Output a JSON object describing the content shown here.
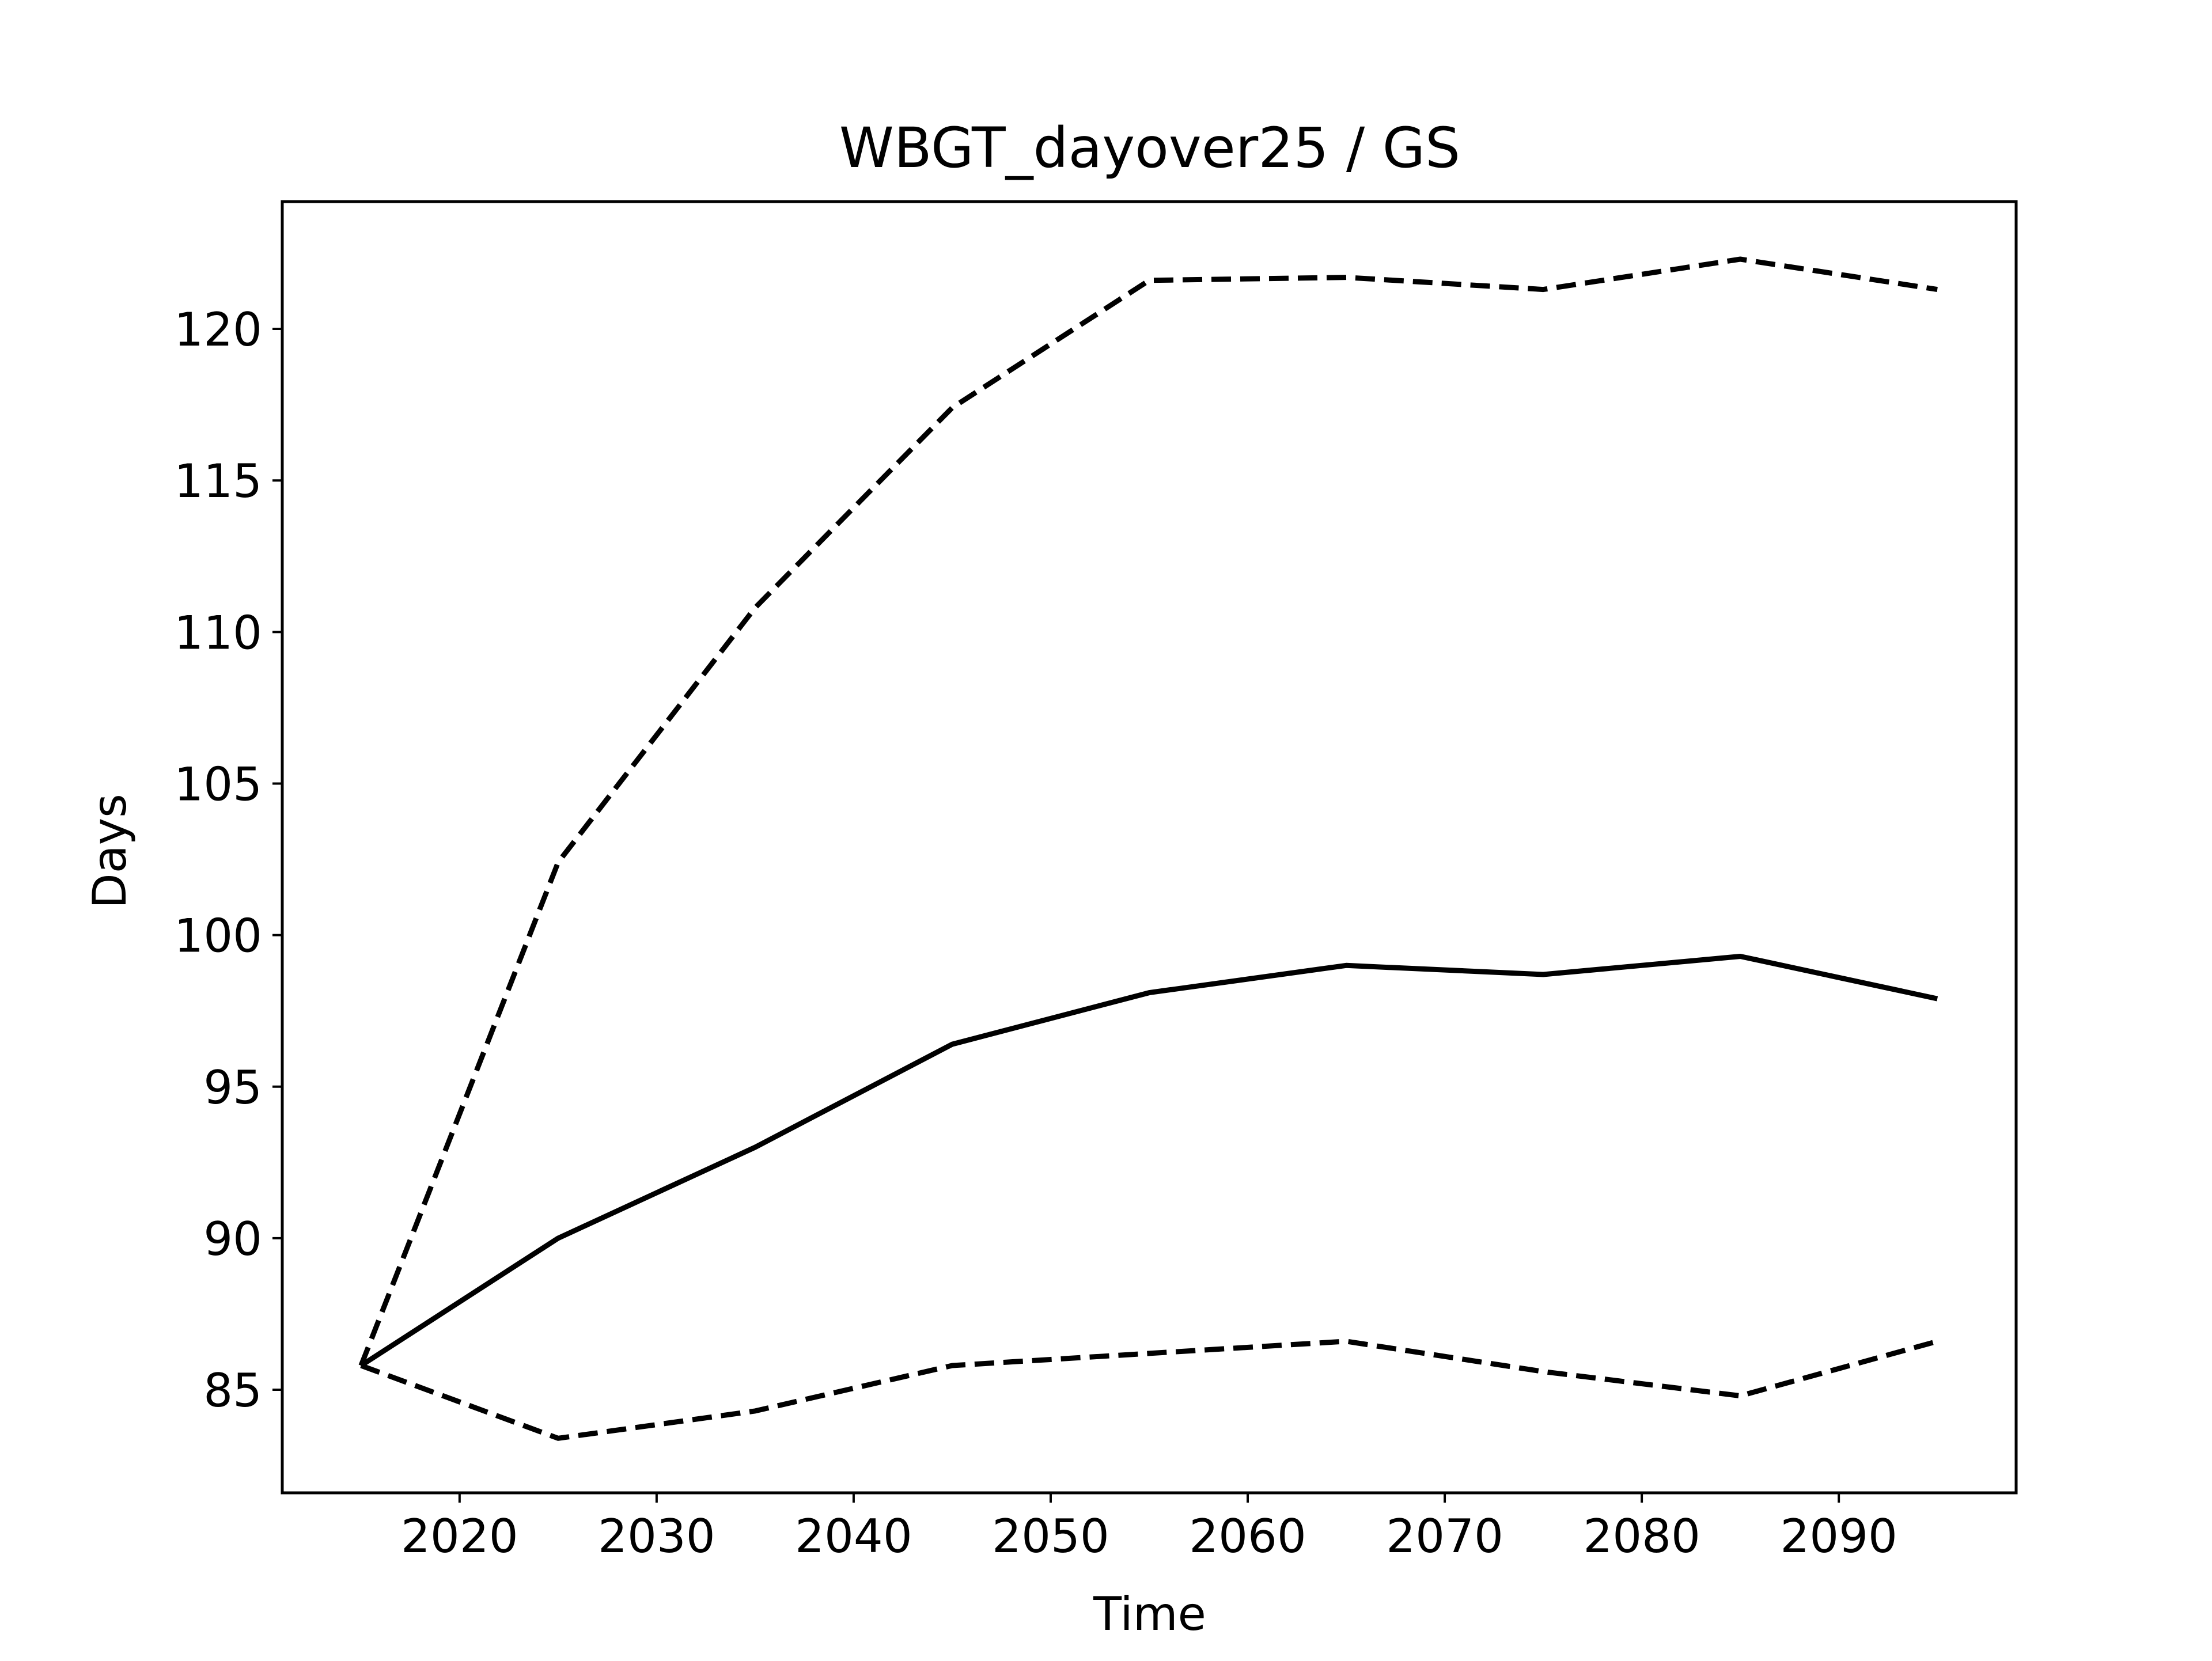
{
  "chart_data": {
    "type": "line",
    "title": "WBGT_dayover25 / GS",
    "xlabel": "Time",
    "ylabel": "Days",
    "xlim": [
      2011,
      2099
    ],
    "ylim": [
      81.6,
      124.2
    ],
    "xticks": [
      2020,
      2030,
      2040,
      2050,
      2060,
      2070,
      2080,
      2090
    ],
    "yticks": [
      85,
      90,
      95,
      100,
      105,
      110,
      115,
      120
    ],
    "grid": false,
    "legend": "none",
    "x": [
      2015,
      2025,
      2035,
      2045,
      2055,
      2065,
      2075,
      2085,
      2095
    ],
    "series": [
      {
        "values": [
          85.8,
          90.0,
          93.0,
          96.4,
          98.1,
          99.0,
          98.7,
          99.3,
          97.9
        ],
        "style": "solid",
        "color": "#000000"
      },
      {
        "values": [
          85.8,
          102.4,
          110.8,
          117.4,
          121.6,
          121.7,
          121.3,
          122.3,
          121.3
        ],
        "style": "dashed",
        "color": "#000000"
      },
      {
        "values": [
          85.8,
          83.4,
          84.3,
          85.8,
          86.2,
          86.6,
          85.6,
          84.8,
          86.6
        ],
        "style": "dashed",
        "color": "#000000"
      }
    ]
  }
}
